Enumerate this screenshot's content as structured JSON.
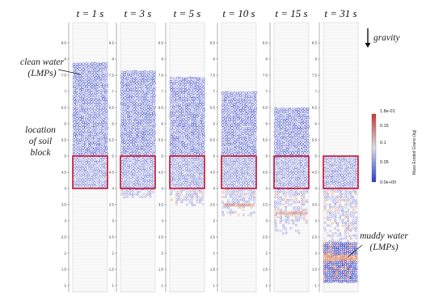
{
  "panels": [
    {
      "time": "t = 1 s",
      "state": 0
    },
    {
      "time": "t = 3 s",
      "state": 1
    },
    {
      "time": "t = 5 s",
      "state": 2
    },
    {
      "time": "t = 10 s",
      "state": 3
    },
    {
      "time": "t = 15 s",
      "state": 4
    },
    {
      "time": "t = 31 s",
      "state": 5
    }
  ],
  "tick_labels": [
    "1",
    "1.5",
    "2",
    "2.5",
    "3",
    "3.5",
    "4",
    "4.5",
    "5",
    "5.5",
    "6",
    "6.5",
    "7",
    "7.5",
    "8",
    "8.5"
  ],
  "annotations": {
    "gravity": "gravity",
    "clean_water": [
      "clean water",
      "(LMPs)"
    ],
    "soil_block": [
      "location",
      "of soil",
      "block"
    ],
    "muddy_water": [
      "muddy water",
      "(LMPs)"
    ]
  },
  "water_level": [
    7.9,
    7.65,
    7.45,
    7.0,
    6.5,
    5.0
  ],
  "colorbar": {
    "title": "Mass Eroded Grains (kg)",
    "max_label": "1.8e-01",
    "min_label": "0.0e+00",
    "ticks": [
      "0.15",
      "0.1",
      "0.05"
    ],
    "colors": [
      "#2c3cc8",
      "#d7dde6",
      "#c8382f"
    ]
  },
  "colors": {
    "water": "#2c3cc8",
    "box": "#c8102e",
    "muddy": "#e06a3b"
  }
}
